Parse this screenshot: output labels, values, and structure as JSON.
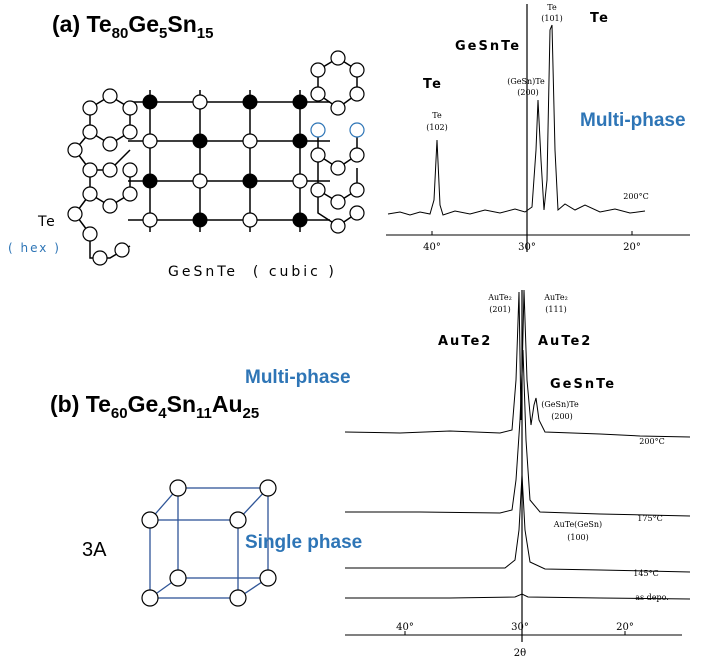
{
  "panel_a": {
    "title": [
      "(a) Te",
      "80",
      "Ge",
      "5",
      "Sn",
      "15"
    ],
    "lattice": {
      "hex_phase": "Te",
      "hex_note": "( hex )",
      "cubic": "GeSnTe  ( cubic )"
    },
    "spectrum": {
      "phase_labels": [
        "Te",
        "GeSnTe",
        "Te"
      ],
      "peaks": [
        [
          "Te",
          "(102)"
        ],
        [
          "(GeSn)Te",
          "(200)"
        ],
        [
          "Te",
          "(101)"
        ]
      ],
      "annotation": "Multi-phase",
      "temperature": "200°C",
      "x_ticks": [
        "40°",
        "30°",
        "20°"
      ]
    }
  },
  "panel_b": {
    "title": [
      "(b) Te",
      "60",
      "Ge",
      "4",
      "Sn",
      "11",
      "Au",
      "25"
    ],
    "structure_label": "3A",
    "annotations": [
      "Multi-phase",
      "Single phase"
    ],
    "spectrum": {
      "phase_labels": [
        "AuTe2",
        "AuTe2",
        "GeSnTe"
      ],
      "peaks": [
        [
          "AuTe₂",
          "(201)"
        ],
        [
          "AuTe₂",
          "(111)"
        ],
        [
          "(GeSn)Te",
          "(200)"
        ],
        [
          "AuTe(GeSn)",
          "(100)"
        ]
      ],
      "temperatures": [
        "200°C",
        "175°C",
        "145°C",
        "as depo."
      ],
      "x_ticks": [
        "40°",
        "30°",
        "20°"
      ],
      "x_label": "2θ"
    }
  }
}
